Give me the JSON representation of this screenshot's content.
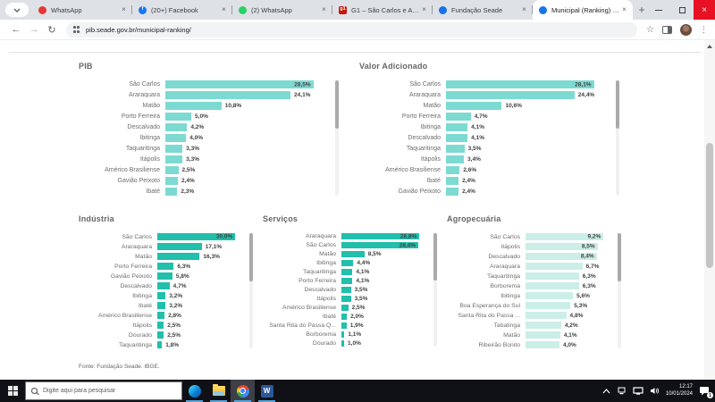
{
  "browser": {
    "tabs": [
      {
        "title": "WhatsApp",
        "icon": "whatsapp-red-icon",
        "icon_color": "#e53935",
        "glyph": ""
      },
      {
        "title": "(20+) Facebook",
        "icon": "facebook-icon",
        "icon_color": "#1877f2",
        "glyph": "f"
      },
      {
        "title": "(2) WhatsApp",
        "icon": "whatsapp-icon",
        "icon_color": "#25d366",
        "glyph": ""
      },
      {
        "title": "G1 – São Carlos e Araraquar...",
        "icon": "g1-icon",
        "icon_color": "#c4170c",
        "glyph": "g1",
        "square": true
      },
      {
        "title": "Fundação Seade",
        "icon": "seade-icon",
        "icon_color": "#1a73e8",
        "glyph": ""
      },
      {
        "title": "Municipal (Ranking) – Seade",
        "icon": "seade-icon",
        "icon_color": "#1a73e8",
        "glyph": ""
      }
    ],
    "active_tab_index": 5,
    "url": "pib.seade.gov.br/municipal-ranking/"
  },
  "chart_data": [
    {
      "type": "bar",
      "title": "PIB",
      "bar_color": "#7cdad1",
      "value_format": "percent, comma decimal",
      "categories": [
        "São Carlos",
        "Araraquara",
        "Matão",
        "Porto Ferreira",
        "Descalvado",
        "Ibitinga",
        "Taquaritinga",
        "Itápolis",
        "Américo Brasiliense",
        "Gavião Peixoto",
        "Ibaté"
      ],
      "values": [
        28.5,
        24.1,
        10.8,
        5.0,
        4.2,
        4.0,
        3.3,
        3.3,
        2.5,
        2.4,
        2.3
      ],
      "value_labels": [
        "28,5%",
        "24,1%",
        "10,8%",
        "5,0%",
        "4,2%",
        "4,0%",
        "3,3%",
        "3,3%",
        "2,5%",
        "2,4%",
        "2,3%"
      ],
      "xlim": [
        0,
        28.5
      ]
    },
    {
      "type": "bar",
      "title": "Valor Adicionado",
      "bar_color": "#7cdad1",
      "value_format": "percent, comma decimal",
      "categories": [
        "São Carlos",
        "Araraquara",
        "Matão",
        "Porto Ferreira",
        "Ibitinga",
        "Descalvado",
        "Taquaritinga",
        "Itápolis",
        "Américo Brasiliense",
        "Ibaté",
        "Gavião Peixoto"
      ],
      "values": [
        28.1,
        24.4,
        10.6,
        4.7,
        4.1,
        4.1,
        3.5,
        3.4,
        2.6,
        2.4,
        2.4
      ],
      "value_labels": [
        "28,1%",
        "24,4%",
        "10,6%",
        "4,7%",
        "4,1%",
        "4,1%",
        "3,5%",
        "3,4%",
        "2,6%",
        "2,4%",
        "2,4%"
      ],
      "xlim": [
        0,
        28.1
      ]
    },
    {
      "type": "bar",
      "title": "Indústria",
      "bar_color": "#21bfac",
      "value_format": "percent, comma decimal",
      "categories": [
        "São Carlos",
        "Araraquara",
        "Matão",
        "Porto Ferreira",
        "Gavião Peixoto",
        "Descalvado",
        "Ibitinga",
        "Ibaté",
        "Américo Brasiliense",
        "Itápolis",
        "Dourado",
        "Taquaritinga"
      ],
      "values": [
        30.0,
        17.1,
        16.3,
        6.3,
        5.8,
        4.7,
        3.2,
        3.2,
        2.8,
        2.5,
        2.5,
        1.8
      ],
      "value_labels": [
        "30,0%",
        "17,1%",
        "16,3%",
        "6,3%",
        "5,8%",
        "4,7%",
        "3,2%",
        "3,2%",
        "2,8%",
        "2,5%",
        "2,5%",
        "1,8%"
      ],
      "xlim": [
        0,
        30.0
      ]
    },
    {
      "type": "bar",
      "title": "Serviços",
      "bar_color": "#21bfac",
      "value_format": "percent, comma decimal",
      "categories": [
        "Araraquara",
        "São Carlos",
        "Matão",
        "Ibitinga",
        "Taquaritinga",
        "Porto Ferreira",
        "Descalvado",
        "Itápolis",
        "Américo Brasiliense",
        "Ibaté",
        "Santa Rita do Passa Q...",
        "Borborema",
        "Dourado"
      ],
      "values": [
        28.8,
        28.4,
        8.5,
        4.4,
        4.1,
        4.1,
        3.5,
        3.5,
        2.5,
        2.0,
        1.9,
        1.1,
        1.0
      ],
      "value_labels": [
        "28,8%",
        "28,4%",
        "8,5%",
        "4,4%",
        "4,1%",
        "4,1%",
        "3,5%",
        "3,5%",
        "2,5%",
        "2,0%",
        "1,9%",
        "1,1%",
        "1,0%"
      ],
      "xlim": [
        0,
        28.8
      ]
    },
    {
      "type": "bar",
      "title": "Agropecuária",
      "bar_color": "#cbeee8",
      "value_format": "percent, comma decimal",
      "categories": [
        "São Carlos",
        "Itápolis",
        "Descalvado",
        "Araraquara",
        "Taquaritinga",
        "Borborema",
        "Ibitinga",
        "Boa Esperança do Sul",
        "Santa Rita do Passa ...",
        "Tabatinga",
        "Matão",
        "Ribeirão Bonito"
      ],
      "values": [
        9.2,
        8.5,
        8.4,
        6.7,
        6.3,
        6.3,
        5.6,
        5.3,
        4.8,
        4.2,
        4.1,
        4.0
      ],
      "value_labels": [
        "9,2%",
        "8,5%",
        "8,4%",
        "6,7%",
        "6,3%",
        "6,3%",
        "5,6%",
        "5,3%",
        "4,8%",
        "4,2%",
        "4,1%",
        "4,0%"
      ],
      "xlim": [
        0,
        9.2
      ]
    }
  ],
  "source_note": "Fonte: Fundação Seade.  IBGE.",
  "taskbar": {
    "search_placeholder": "Digite aqui para pesquisar",
    "word_glyph": "W",
    "clock_time": "12:17",
    "clock_date": "10/01/2024",
    "notification_count": "1"
  }
}
